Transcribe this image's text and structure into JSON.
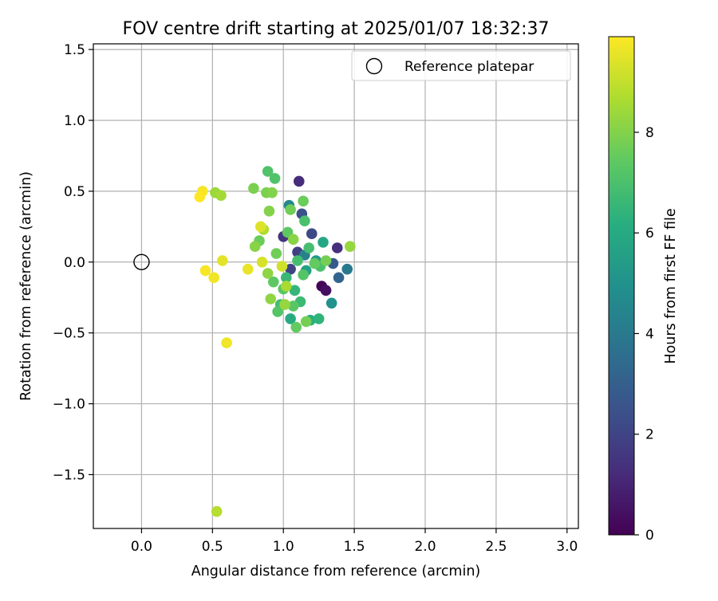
{
  "chart_data": {
    "type": "scatter",
    "title": "FOV centre drift starting at 2025/01/07 18:32:37",
    "xlabel": "Angular distance from reference (arcmin)",
    "ylabel": "Rotation from reference (arcmin)",
    "xlim": [
      -0.34,
      3.08
    ],
    "ylim": [
      -1.88,
      1.54
    ],
    "xticks": [
      "0.0",
      "0.5",
      "1.0",
      "1.5",
      "2.0",
      "2.5",
      "3.0"
    ],
    "yticks": [
      "1.5",
      "1.0",
      "0.5",
      "0.0",
      "−0.5",
      "−1.0",
      "−1.5"
    ],
    "grid": true,
    "legend": {
      "position": "top-right",
      "entries": [
        "Reference platepar"
      ]
    },
    "reference_point": {
      "x": 0.0,
      "y": 0.0
    },
    "colorbar": {
      "label": "Hours from first FF file",
      "range": [
        0,
        9.9
      ],
      "ticks": [
        "0",
        "2",
        "4",
        "6",
        "8"
      ],
      "colormap": "viridis"
    },
    "points": [
      {
        "x": 1.27,
        "y": -0.17,
        "h": 0.1
      },
      {
        "x": 1.3,
        "y": -0.2,
        "h": 0.4
      },
      {
        "x": 1.11,
        "y": 0.57,
        "h": 1.2
      },
      {
        "x": 1.38,
        "y": 0.1,
        "h": 1.3
      },
      {
        "x": 1.0,
        "y": 0.18,
        "h": 1.5
      },
      {
        "x": 1.1,
        "y": 0.07,
        "h": 1.8
      },
      {
        "x": 1.05,
        "y": -0.05,
        "h": 2.0
      },
      {
        "x": 1.2,
        "y": 0.2,
        "h": 2.2
      },
      {
        "x": 1.13,
        "y": 0.34,
        "h": 2.4
      },
      {
        "x": 1.35,
        "y": -0.01,
        "h": 2.8
      },
      {
        "x": 1.39,
        "y": -0.11,
        "h": 3.2
      },
      {
        "x": 1.45,
        "y": -0.05,
        "h": 4.0
      },
      {
        "x": 1.15,
        "y": 0.05,
        "h": 4.3
      },
      {
        "x": 1.04,
        "y": 0.4,
        "h": 4.6
      },
      {
        "x": 1.34,
        "y": -0.29,
        "h": 5.0
      },
      {
        "x": 1.23,
        "y": 0.01,
        "h": 5.3
      },
      {
        "x": 1.16,
        "y": -0.06,
        "h": 5.6
      },
      {
        "x": 1.28,
        "y": 0.14,
        "h": 5.9
      },
      {
        "x": 1.05,
        "y": -0.4,
        "h": 6.0
      },
      {
        "x": 1.19,
        "y": -0.41,
        "h": 6.2
      },
      {
        "x": 1.25,
        "y": -0.4,
        "h": 6.4
      },
      {
        "x": 1.08,
        "y": -0.2,
        "h": 6.5
      },
      {
        "x": 1.02,
        "y": -0.11,
        "h": 6.6
      },
      {
        "x": 1.12,
        "y": -0.28,
        "h": 6.7
      },
      {
        "x": 0.98,
        "y": -0.3,
        "h": 6.8
      },
      {
        "x": 1.1,
        "y": 0.01,
        "h": 6.9
      },
      {
        "x": 1.18,
        "y": 0.1,
        "h": 6.9
      },
      {
        "x": 1.26,
        "y": -0.03,
        "h": 7.0
      },
      {
        "x": 1.15,
        "y": 0.29,
        "h": 7.0
      },
      {
        "x": 0.94,
        "y": 0.59,
        "h": 7.1
      },
      {
        "x": 0.89,
        "y": 0.64,
        "h": 7.1
      },
      {
        "x": 1.14,
        "y": -0.09,
        "h": 7.2
      },
      {
        "x": 0.96,
        "y": -0.35,
        "h": 7.2
      },
      {
        "x": 1.0,
        "y": -0.19,
        "h": 7.3
      },
      {
        "x": 1.07,
        "y": -0.31,
        "h": 7.3
      },
      {
        "x": 1.03,
        "y": 0.21,
        "h": 7.4
      },
      {
        "x": 0.93,
        "y": -0.14,
        "h": 7.4
      },
      {
        "x": 1.22,
        "y": -0.01,
        "h": 7.5
      },
      {
        "x": 1.09,
        "y": -0.46,
        "h": 7.5
      },
      {
        "x": 1.14,
        "y": 0.43,
        "h": 7.6
      },
      {
        "x": 0.83,
        "y": 0.15,
        "h": 7.6
      },
      {
        "x": 0.95,
        "y": 0.06,
        "h": 7.7
      },
      {
        "x": 1.05,
        "y": 0.37,
        "h": 7.7
      },
      {
        "x": 1.16,
        "y": -0.42,
        "h": 7.8
      },
      {
        "x": 1.3,
        "y": 0.01,
        "h": 7.8
      },
      {
        "x": 0.88,
        "y": 0.49,
        "h": 7.9
      },
      {
        "x": 0.79,
        "y": 0.52,
        "h": 7.9
      },
      {
        "x": 0.9,
        "y": 0.36,
        "h": 8.0
      },
      {
        "x": 0.92,
        "y": 0.49,
        "h": 8.0
      },
      {
        "x": 1.07,
        "y": 0.16,
        "h": 8.1
      },
      {
        "x": 0.8,
        "y": 0.11,
        "h": 8.1
      },
      {
        "x": 0.89,
        "y": -0.08,
        "h": 8.2
      },
      {
        "x": 0.91,
        "y": -0.26,
        "h": 8.2
      },
      {
        "x": 1.01,
        "y": -0.3,
        "h": 8.3
      },
      {
        "x": 1.47,
        "y": 0.11,
        "h": 8.3
      },
      {
        "x": 0.52,
        "y": 0.49,
        "h": 8.4
      },
      {
        "x": 0.56,
        "y": 0.47,
        "h": 8.5
      },
      {
        "x": 1.02,
        "y": -0.17,
        "h": 8.6
      },
      {
        "x": 0.86,
        "y": 0.23,
        "h": 8.7
      },
      {
        "x": 0.53,
        "y": -1.76,
        "h": 8.8
      },
      {
        "x": 0.99,
        "y": -0.03,
        "h": 9.2
      },
      {
        "x": 0.85,
        "y": 0.0,
        "h": 9.3
      },
      {
        "x": 0.84,
        "y": 0.25,
        "h": 9.4
      },
      {
        "x": 0.57,
        "y": 0.01,
        "h": 9.5
      },
      {
        "x": 0.75,
        "y": -0.05,
        "h": 9.6
      },
      {
        "x": 0.6,
        "y": -0.57,
        "h": 9.7
      },
      {
        "x": 0.51,
        "y": -0.11,
        "h": 9.7
      },
      {
        "x": 0.45,
        "y": -0.06,
        "h": 9.8
      },
      {
        "x": 0.43,
        "y": 0.5,
        "h": 9.8
      },
      {
        "x": 0.41,
        "y": 0.46,
        "h": 9.9
      }
    ]
  }
}
